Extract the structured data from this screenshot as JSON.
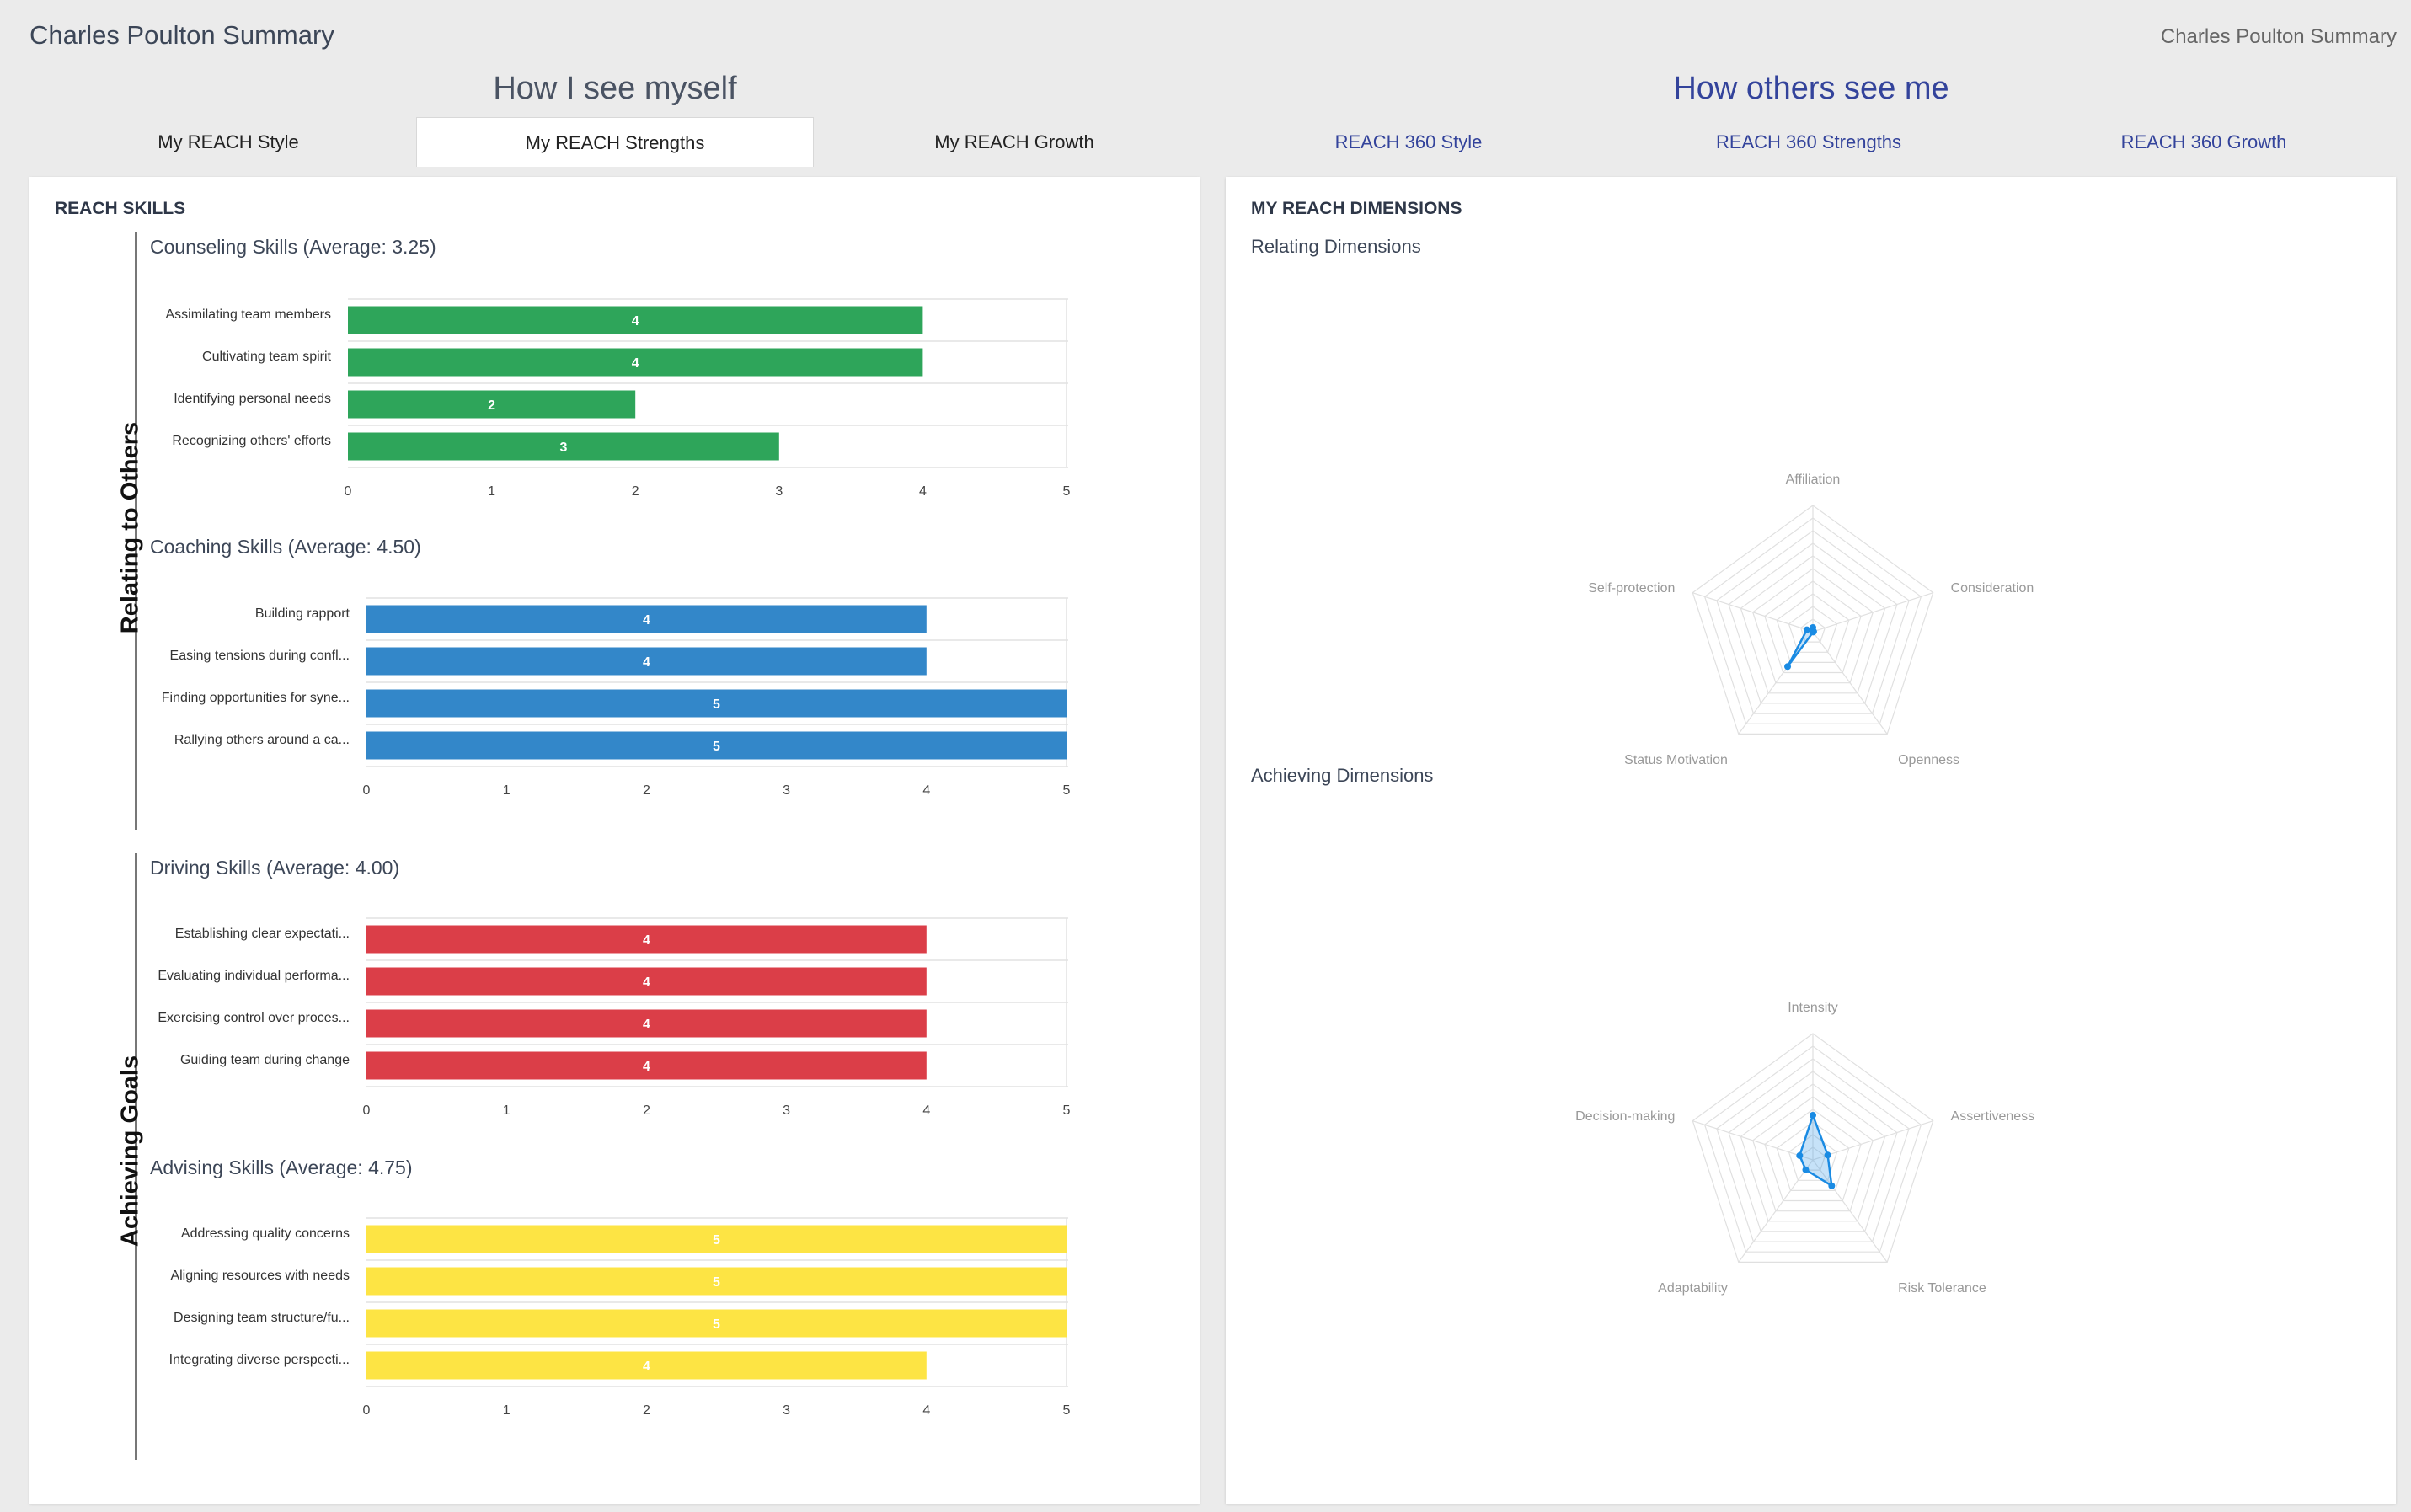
{
  "header": {
    "title": "Charles Poulton Summary",
    "breadcrumb": "Charles Poulton Summary"
  },
  "sections": {
    "self": "How I see myself",
    "others": "How others see me"
  },
  "tabs": [
    {
      "label": "My REACH Style",
      "group": "self",
      "active": false
    },
    {
      "label": "My REACH Strengths",
      "group": "self",
      "active": true
    },
    {
      "label": "My REACH Growth",
      "group": "self",
      "active": false
    },
    {
      "label": "REACH 360 Style",
      "group": "others",
      "active": false
    },
    {
      "label": "REACH 360 Strengths",
      "group": "others",
      "active": false
    },
    {
      "label": "REACH 360 Growth",
      "group": "others",
      "active": false
    }
  ],
  "skills_panel": {
    "title": "REACH SKILLS",
    "groups": [
      "Relating to Others",
      "Achieving Goals"
    ]
  },
  "dimensions_panel": {
    "title": "MY REACH DIMENSIONS",
    "relating_title": "Relating Dimensions",
    "achieving_title": "Achieving Dimensions"
  },
  "colors": {
    "green": "#2ea55a",
    "blue": "#3387c9",
    "red": "#db3e48",
    "yellow": "#fde444",
    "radar": "#1a8be3"
  },
  "chart_data": [
    {
      "type": "bar",
      "orientation": "horizontal",
      "title": "Counseling Skills (Average: 3.25)",
      "categories": [
        "Assimilating team members",
        "Cultivating team spirit",
        "Identifying personal needs",
        "Recognizing others' efforts"
      ],
      "values": [
        4,
        4,
        2,
        3
      ],
      "xlim": [
        0,
        5
      ],
      "ticks": [
        "0",
        "1",
        "2",
        "3",
        "4",
        "5"
      ],
      "color": "green"
    },
    {
      "type": "bar",
      "orientation": "horizontal",
      "title": "Coaching Skills (Average: 4.50)",
      "categories": [
        "Building rapport",
        "Easing tensions during confl...",
        "Finding opportunities for syne...",
        "Rallying others around a ca..."
      ],
      "values": [
        4,
        4,
        5,
        5
      ],
      "xlim": [
        0,
        5
      ],
      "ticks": [
        "0",
        "1",
        "2",
        "3",
        "4",
        "5"
      ],
      "color": "blue"
    },
    {
      "type": "bar",
      "orientation": "horizontal",
      "title": "Driving Skills (Average: 4.00)",
      "categories": [
        "Establishing clear expectati...",
        "Evaluating individual performa...",
        "Exercising control over proces...",
        "Guiding team during change"
      ],
      "values": [
        4,
        4,
        4,
        4
      ],
      "xlim": [
        0,
        5
      ],
      "ticks": [
        "0",
        "1",
        "2",
        "3",
        "4",
        "5"
      ],
      "color": "red"
    },
    {
      "type": "bar",
      "orientation": "horizontal",
      "title": "Advising Skills (Average: 4.75)",
      "categories": [
        "Addressing quality concerns",
        "Aligning resources with needs",
        "Designing team structure/fu...",
        "Integrating diverse perspecti..."
      ],
      "values": [
        5,
        5,
        5,
        4
      ],
      "xlim": [
        0,
        5
      ],
      "ticks": [
        "0",
        "1",
        "2",
        "3",
        "4",
        "5"
      ],
      "color": "yellow"
    },
    {
      "type": "radar",
      "axes": [
        "Affiliation",
        "Consideration",
        "Openness",
        "Status Motivation",
        "Self-protection"
      ],
      "values": [
        1.0,
        0.2,
        0.1,
        10.2,
        1.5
      ],
      "rmax": 30,
      "rings": 10,
      "color": "radar"
    },
    {
      "type": "radar",
      "axes": [
        "Intensity",
        "Assertiveness",
        "Risk Tolerance",
        "Adaptability",
        "Decision-making"
      ],
      "values": [
        10.6,
        3.7,
        7.6,
        2.9,
        3.3
      ],
      "rmax": 30,
      "rings": 10,
      "color": "radar"
    }
  ]
}
